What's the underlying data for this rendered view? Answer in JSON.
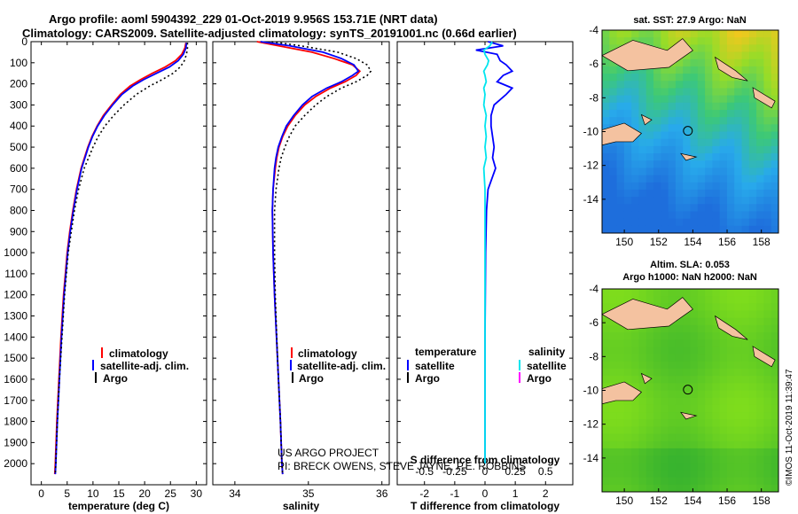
{
  "title_line1": "Argo profile: aoml 5904392_229 01-Oct-2019 9.956S 153.71E (NRT data)",
  "title_line2": "Climatology: CARS2009. Satellite-adjusted climatology: synTS_20191001.nc (0.66d earlier)",
  "colors": {
    "climatology": "#ff0000",
    "satellite": "#0000ff",
    "argo": "#000000",
    "sal_satellite": "#00e5ee",
    "sal_argo": "#ff00ff",
    "land": "#f4c2a0"
  },
  "legend": {
    "climatology": "climatology",
    "satellite_adj": "satellite-adj. clim.",
    "argo": "Argo"
  },
  "diff_legend": {
    "temperature": "temperature",
    "salinity": "salinity",
    "satellite": "satellite",
    "argo": "Argo"
  },
  "credits": {
    "line1": "US ARGO PROJECT",
    "line2": "PI: BRECK OWENS, STEVE JAYNE, P.E. ROBBINS"
  },
  "map_top": {
    "title": "sat. SST: 27.9 Argo: NaN"
  },
  "map_bottom": {
    "title1": "Altim. SLA: 0.053",
    "title2": "Argo h1000: NaN h2000: NaN"
  },
  "imos_stamp": "©IMOS 11-Oct-2019 11:39:47",
  "chart_data": [
    {
      "type": "line",
      "name": "temperature",
      "xlabel": "temperature (deg C)",
      "ylabel": "",
      "xlim": [
        -2,
        32
      ],
      "ylim": [
        2100,
        0
      ],
      "xticks": [
        0,
        5,
        10,
        15,
        20,
        25,
        30
      ],
      "yticks": [
        0,
        100,
        200,
        300,
        400,
        500,
        600,
        700,
        800,
        900,
        1000,
        1100,
        1200,
        1300,
        1400,
        1500,
        1600,
        1700,
        1800,
        1900,
        2000
      ],
      "depth": [
        5,
        30,
        60,
        90,
        120,
        150,
        180,
        210,
        250,
        300,
        350,
        400,
        450,
        500,
        600,
        700,
        800,
        900,
        1000,
        1200,
        1400,
        1600,
        1800,
        2000,
        2050
      ],
      "series": [
        {
          "name": "climatology",
          "values": [
            28.0,
            27.8,
            27.2,
            26.0,
            24.0,
            21.5,
            19.2,
            17.2,
            15.3,
            13.6,
            12.0,
            10.8,
            9.8,
            9.0,
            7.7,
            6.8,
            6.1,
            5.5,
            5.0,
            4.3,
            3.8,
            3.4,
            3.0,
            2.7,
            2.6
          ]
        },
        {
          "name": "satellite-adj. clim.",
          "values": [
            28.1,
            28.0,
            27.5,
            26.5,
            24.8,
            22.3,
            19.8,
            17.7,
            15.6,
            13.8,
            12.2,
            10.9,
            9.9,
            9.1,
            7.8,
            6.9,
            6.2,
            5.6,
            5.1,
            4.4,
            3.9,
            3.5,
            3.1,
            2.8,
            2.7
          ]
        },
        {
          "name": "Argo",
          "values": [
            28.3,
            28.3,
            28.1,
            27.7,
            26.9,
            25.5,
            23.4,
            21.0,
            18.4,
            16.0,
            14.0,
            12.3,
            11.0,
            10.0,
            8.3,
            7.2,
            6.4,
            5.8,
            5.2,
            4.5,
            4.0,
            3.5,
            3.1,
            2.8,
            2.7
          ]
        }
      ]
    },
    {
      "type": "line",
      "name": "salinity",
      "xlabel": "salinity",
      "ylabel": "",
      "xlim": [
        33.7,
        36.1
      ],
      "ylim": [
        2100,
        0
      ],
      "xticks": [
        34,
        35,
        36
      ],
      "depth": [
        0,
        20,
        50,
        80,
        110,
        140,
        160,
        190,
        220,
        260,
        300,
        350,
        400,
        450,
        500,
        550,
        600,
        700,
        800,
        1000,
        1200,
        1500,
        1800,
        2000,
        2050
      ],
      "series": [
        {
          "name": "climatology",
          "values": [
            34.3,
            34.6,
            35.05,
            35.35,
            35.6,
            35.7,
            35.65,
            35.5,
            35.3,
            35.1,
            34.95,
            34.82,
            34.72,
            34.65,
            34.6,
            34.57,
            34.55,
            34.52,
            34.51,
            34.52,
            34.54,
            34.58,
            34.62,
            34.64,
            34.65
          ]
        },
        {
          "name": "satellite-adj. clim.",
          "values": [
            34.35,
            34.75,
            35.2,
            35.45,
            35.62,
            35.68,
            35.6,
            35.45,
            35.25,
            35.05,
            34.92,
            34.8,
            34.7,
            34.64,
            34.59,
            34.56,
            34.54,
            34.52,
            34.51,
            34.52,
            34.54,
            34.58,
            34.62,
            34.64,
            34.65
          ]
        },
        {
          "name": "Argo",
          "values": [
            34.5,
            34.9,
            35.4,
            35.65,
            35.8,
            35.85,
            35.8,
            35.65,
            35.45,
            35.25,
            35.1,
            34.95,
            34.82,
            34.74,
            34.68,
            34.63,
            34.6,
            34.56,
            34.54,
            34.54,
            34.55,
            34.58,
            34.62,
            34.64,
            34.65
          ]
        }
      ]
    },
    {
      "type": "line",
      "name": "difference",
      "xlabel": "T difference from climatology",
      "x2label": "S difference from climatology",
      "xlim": [
        -2.9,
        2.9
      ],
      "x2lim": [
        -0.725,
        0.725
      ],
      "ylim": [
        2100,
        0
      ],
      "xticks": [
        -2,
        -1,
        0,
        1,
        2
      ],
      "x2ticks": [
        -0.5,
        -0.25,
        0,
        0.25,
        0.5
      ],
      "depth": [
        0,
        20,
        40,
        60,
        90,
        110,
        140,
        160,
        190,
        220,
        250,
        300,
        350,
        400,
        450,
        500,
        550,
        600,
        700,
        800,
        1000,
        1400,
        1800,
        2000
      ],
      "series": [
        {
          "name": "temperature satellite",
          "values": [
            0.1,
            0.6,
            -0.3,
            0.4,
            0.5,
            0.7,
            0.9,
            0.6,
            0.4,
            0.9,
            0.7,
            0.3,
            0.2,
            0.2,
            0.25,
            0.3,
            0.25,
            0.35,
            0.1,
            0.05,
            0.02,
            0.0,
            0.0,
            0.0
          ]
        },
        {
          "name": "salinity satellite",
          "values": [
            0.06,
            0.04,
            -0.01,
            0.0,
            0.03,
            0.02,
            -0.01,
            0.0,
            0.01,
            -0.01,
            0.0,
            -0.01,
            0.01,
            0.0,
            0.01,
            0.0,
            0.01,
            -0.01,
            0.0,
            0.0,
            0.0,
            0.0,
            0.0,
            0.0
          ]
        }
      ]
    },
    {
      "type": "heatmap",
      "name": "sat-sst-map",
      "xlim": [
        148.7,
        159
      ],
      "ylim": [
        -16,
        -4
      ],
      "xticks": [
        150,
        152,
        154,
        156,
        158
      ],
      "yticks": [
        -4,
        -6,
        -8,
        -10,
        -12,
        -14
      ],
      "float_position": [
        153.71,
        -9.956
      ]
    },
    {
      "type": "heatmap",
      "name": "sla-map",
      "xlim": [
        148.7,
        159
      ],
      "ylim": [
        -16,
        -4
      ],
      "xticks": [
        150,
        152,
        154,
        156,
        158
      ],
      "yticks": [
        -4,
        -6,
        -8,
        -10,
        -12,
        -14
      ],
      "float_position": [
        153.71,
        -9.956
      ]
    }
  ]
}
